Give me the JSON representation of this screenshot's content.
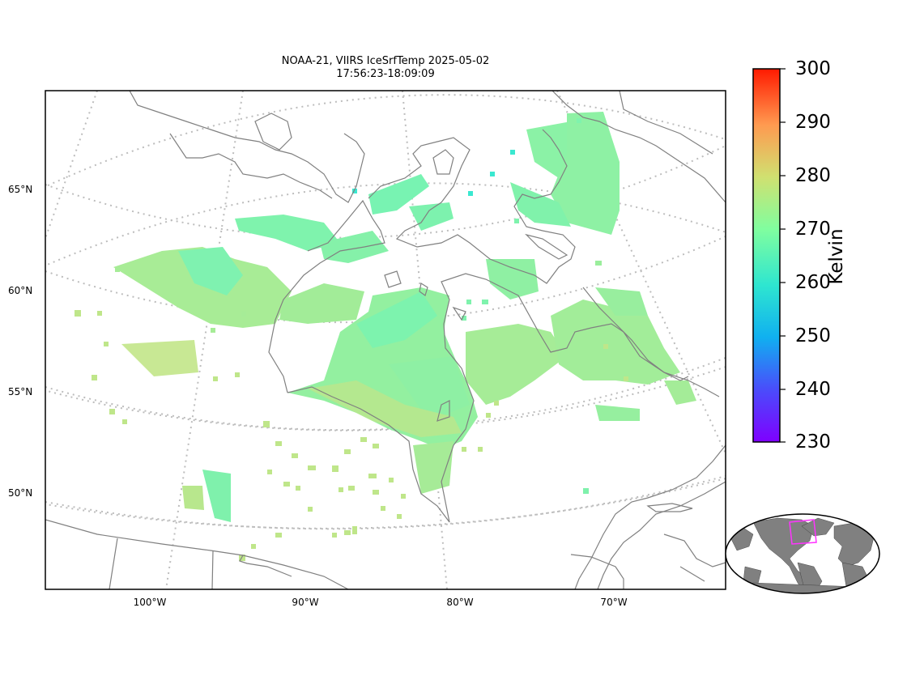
{
  "title": {
    "line1": "NOAA-21, VIIRS IceSrfTemp 2025-05-02",
    "line2": "17:56:23-18:09:09"
  },
  "map": {
    "lat_labels": [
      "65°N",
      "60°N",
      "55°N",
      "50°N"
    ],
    "lon_labels": [
      "100°W",
      "90°W",
      "80°W",
      "70°W"
    ],
    "colors": {
      "coastline": "#808080",
      "graticule": "#bdbdbd",
      "frame": "#000000",
      "ocean_land_inset": "#808080",
      "inset_box": "#ff33ff"
    }
  },
  "colorbar": {
    "label": "Kelvin",
    "min": 230,
    "max": 300,
    "ticks": [
      "300",
      "290",
      "280",
      "270",
      "260",
      "250",
      "240",
      "230"
    ],
    "colormap": "rainbow"
  },
  "inset": {
    "name": "global-locator-map",
    "region": "northeastern North America"
  }
}
